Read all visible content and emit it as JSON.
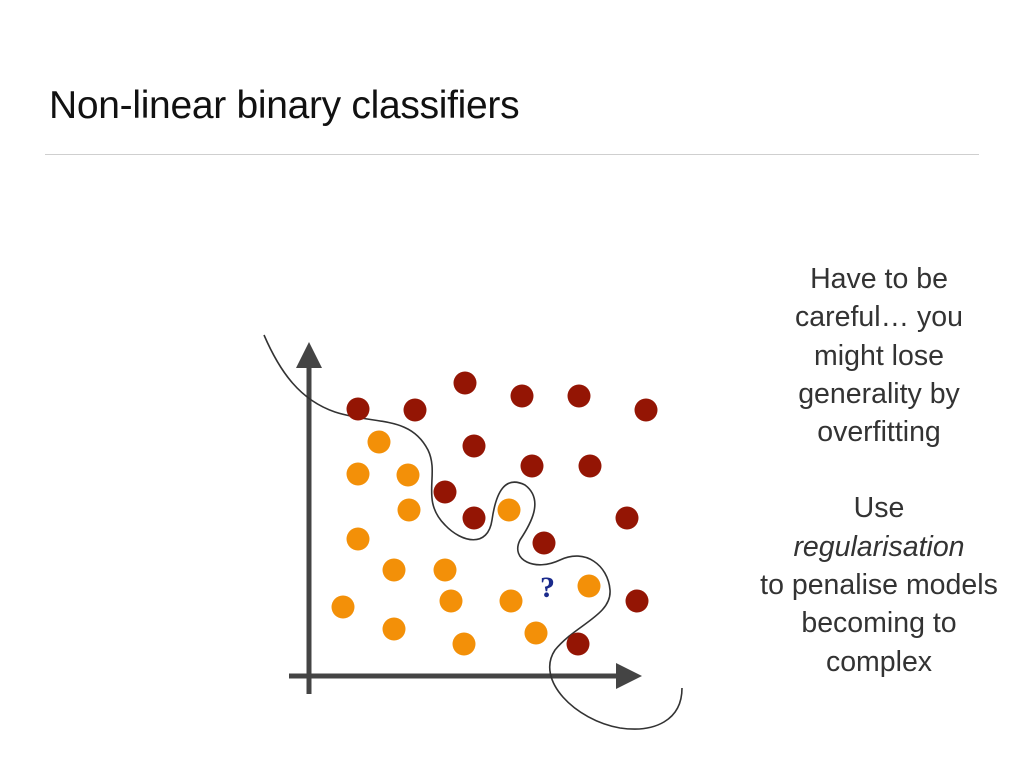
{
  "slide": {
    "title": "Non-linear binary classifiers"
  },
  "diagram": {
    "question_mark": "?",
    "colors": {
      "class_a": "#f39008",
      "class_b": "#941504",
      "axes": "#444444",
      "boundary": "#333333",
      "question_mark": "#1a2a8c"
    }
  },
  "notes": {
    "line1": "Have to be careful… you might lose generality by overfitting",
    "line2_word1": "Use",
    "line2_emph": "regularisation",
    "line2_rest": "to penalise models becoming to complex"
  }
}
